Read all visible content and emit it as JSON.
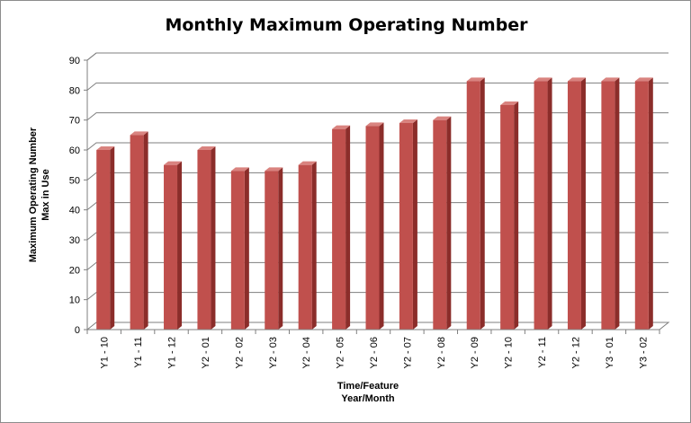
{
  "chart_data": {
    "type": "bar",
    "title": "Monthly Maximum Operating Number",
    "ylabel": [
      "Maximum Operating Number",
      "Max in Use"
    ],
    "xlabel": [
      "Time/Feature",
      "Year/Month"
    ],
    "ylim": [
      0,
      90
    ],
    "yticks": [
      0,
      10,
      20,
      30,
      40,
      50,
      60,
      70,
      80,
      90
    ],
    "grid": true,
    "legend": "none",
    "categories": [
      "Y1 - 10",
      "Y1 - 11",
      "Y1 - 12",
      "Y2 - 01",
      "Y2 - 02",
      "Y2 - 03",
      "Y2 - 04",
      "Y2 - 05",
      "Y2 - 06",
      "Y2 - 07",
      "Y2 - 08",
      "Y2 - 09",
      "Y2 - 10",
      "Y2 - 11",
      "Y2 - 12",
      "Y3 - 01",
      "Y3 - 02"
    ],
    "values": [
      60,
      65,
      55,
      60,
      53,
      53,
      55,
      67,
      68,
      69,
      70,
      83,
      75,
      83,
      83,
      83,
      83
    ],
    "colors": {
      "bar_front": "#c0504d",
      "bar_side": "#8b2d2a",
      "bar_top": "#d9837f",
      "grid": "#7f7f7f"
    }
  }
}
